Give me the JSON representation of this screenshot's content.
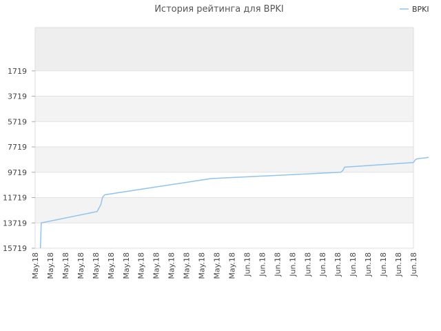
{
  "chart_data": {
    "type": "line",
    "title": "История рейтинга для BPKI",
    "legend": {
      "position": "top-right",
      "entries": [
        "BPKI"
      ]
    },
    "xlabel": "",
    "ylabel": "",
    "y_inverted": true,
    "ylim": [
      15719,
      -1700
    ],
    "y_ticks": [
      1719,
      3719,
      5719,
      7719,
      9719,
      11719,
      13719,
      15719
    ],
    "x_tick_labels": [
      "May.18",
      "May.18",
      "May.18",
      "May.18",
      "May.18",
      "May.18",
      "May.18",
      "May.18",
      "May.18",
      "May.18",
      "May.18",
      "May.18",
      "May.18",
      "May.18",
      "Jun.18",
      "Jun.18",
      "Jun.18",
      "Jun.18",
      "Jun.18",
      "Jun.18",
      "Jun.18",
      "Jun.18",
      "Jun.18",
      "Jun.18",
      "Jun.18",
      "Jun.18"
    ],
    "series": [
      {
        "name": "BPKI",
        "color": "#8fc3f0",
        "x_index": [
          0.35,
          0.4,
          4.1,
          4.35,
          4.45,
          4.6,
          11.2,
          11.6,
          20.2,
          20.35,
          20.45,
          25.0,
          25.15,
          25.3,
          26.0
        ],
        "values": [
          15719,
          13719,
          12820,
          12250,
          11719,
          11500,
          10300,
          10219,
          9719,
          9550,
          9319,
          8950,
          8700,
          8650,
          8550
        ]
      }
    ],
    "grid": true
  }
}
